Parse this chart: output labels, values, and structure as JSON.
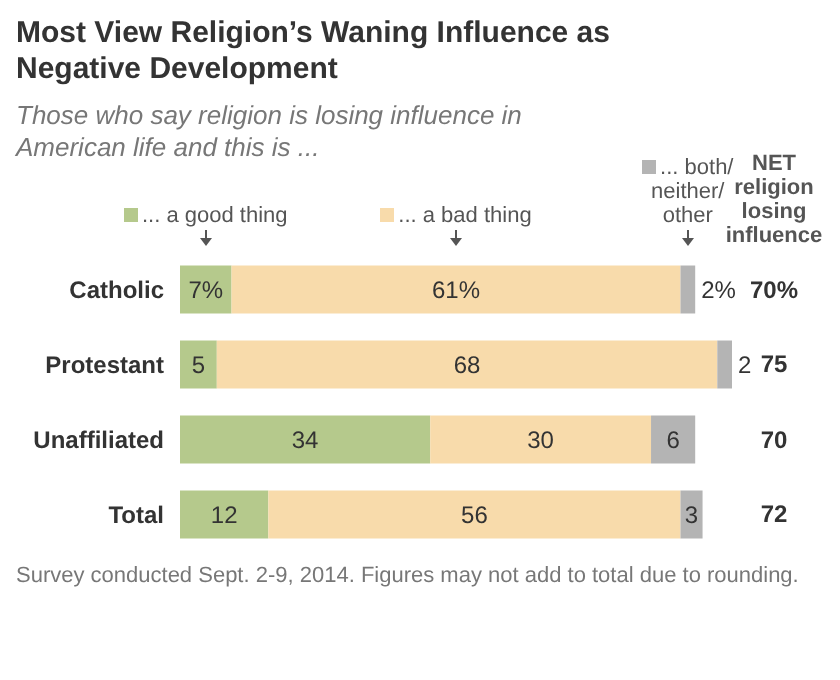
{
  "chart_data": {
    "type": "bar",
    "orientation": "horizontal",
    "stacked": true,
    "title": "Most View Religion’s Waning Influence as Negative Development",
    "subtitle": "Those who say religion is losing influence in American life and this is ...",
    "categories": [
      "Catholic",
      "Protestant",
      "Unaffiliated",
      "Total"
    ],
    "series": [
      {
        "name": "... a good thing",
        "color": "#b5c98c",
        "values": [
          7,
          5,
          34,
          12
        ],
        "value_labels": [
          "7%",
          "5",
          "34",
          "12"
        ]
      },
      {
        "name": "... a bad thing",
        "color": "#f8dbab",
        "values": [
          61,
          68,
          30,
          56
        ],
        "value_labels": [
          "61%",
          "68",
          "30",
          "56"
        ]
      },
      {
        "name": "... both/ neither/ other",
        "color": "#b4b4b4",
        "values": [
          2,
          2,
          6,
          3
        ],
        "value_labels": [
          "2%",
          "2",
          "6",
          "3"
        ]
      }
    ],
    "legend": "top",
    "annotations": [
      "NET religion losing influence",
      "70%",
      "75",
      "70",
      "72",
      "Survey conducted Sept. 2-9, 2014. Figures may not add to total due to rounding."
    ]
  }
}
